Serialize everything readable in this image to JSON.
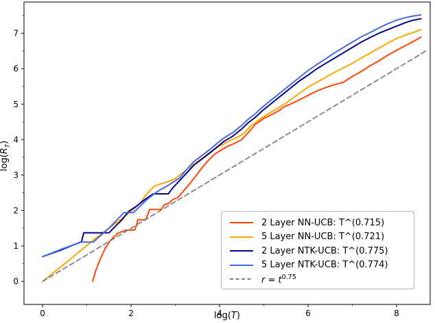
{
  "figure": {
    "background": "#ffffff"
  },
  "chart_data": {
    "type": "line",
    "title": "",
    "xlabel": {
      "pre": "log(",
      "var": "T",
      "post": ")"
    },
    "ylabel": {
      "pre": "log(",
      "var": "R",
      "sub": "T",
      "post": ")"
    },
    "xlim": [
      -0.42,
      8.76
    ],
    "ylim": [
      -0.65,
      7.88
    ],
    "x_ticks": [
      0,
      2,
      4,
      6,
      8
    ],
    "y_ticks": [
      0,
      1,
      2,
      3,
      4,
      5,
      6,
      7
    ],
    "x_minor_ticks": [
      1,
      3,
      5,
      7
    ],
    "y_minor_ticks": [
      0.5,
      1.5,
      2.5,
      3.5,
      4.5,
      5.5,
      6.5,
      7.5
    ],
    "grid": false,
    "legend_position": "lower right",
    "axis_color": "#262626",
    "series": [
      {
        "name": "2 Layer NN-UCB: T^(0.715)",
        "color": "#FF4500",
        "dash": "solid",
        "points": [
          [
            1.13,
            0.0
          ],
          [
            1.2,
            0.3
          ],
          [
            1.3,
            0.62
          ],
          [
            1.42,
            0.95
          ],
          [
            1.55,
            1.18
          ],
          [
            1.7,
            1.36
          ],
          [
            1.9,
            1.45
          ],
          [
            2.08,
            1.45
          ],
          [
            2.13,
            1.6
          ],
          [
            2.15,
            1.74
          ],
          [
            2.33,
            1.74
          ],
          [
            2.38,
            1.9
          ],
          [
            2.42,
            2.03
          ],
          [
            2.68,
            2.03
          ],
          [
            2.75,
            2.16
          ],
          [
            2.85,
            2.2
          ],
          [
            2.95,
            2.32
          ],
          [
            3.05,
            2.36
          ],
          [
            3.15,
            2.5
          ],
          [
            3.3,
            2.72
          ],
          [
            3.45,
            2.95
          ],
          [
            3.6,
            3.2
          ],
          [
            3.75,
            3.42
          ],
          [
            3.9,
            3.6
          ],
          [
            4.05,
            3.72
          ],
          [
            4.2,
            3.82
          ],
          [
            4.35,
            3.9
          ],
          [
            4.5,
            4.0
          ],
          [
            4.65,
            4.2
          ],
          [
            4.8,
            4.42
          ],
          [
            5.0,
            4.6
          ],
          [
            5.2,
            4.72
          ],
          [
            5.35,
            4.82
          ],
          [
            5.45,
            4.92
          ],
          [
            5.6,
            5.0
          ],
          [
            5.8,
            5.12
          ],
          [
            6.0,
            5.25
          ],
          [
            6.2,
            5.37
          ],
          [
            6.4,
            5.47
          ],
          [
            6.6,
            5.55
          ],
          [
            6.8,
            5.62
          ],
          [
            7.0,
            5.78
          ],
          [
            7.2,
            5.92
          ],
          [
            7.4,
            6.08
          ],
          [
            7.6,
            6.22
          ],
          [
            7.8,
            6.38
          ],
          [
            8.0,
            6.52
          ],
          [
            8.2,
            6.65
          ],
          [
            8.35,
            6.75
          ],
          [
            8.55,
            6.89
          ]
        ]
      },
      {
        "name": "5 Layer NN-UCB: T^(0.721)",
        "color": "#FFA500",
        "dash": "solid",
        "points": [
          [
            0,
            0
          ],
          [
            0.3,
            0.3
          ],
          [
            0.6,
            0.6
          ],
          [
            0.9,
            0.91
          ],
          [
            1.2,
            1.22
          ],
          [
            1.5,
            1.5
          ],
          [
            1.8,
            1.78
          ],
          [
            2.0,
            1.98
          ],
          [
            2.2,
            2.2
          ],
          [
            2.3,
            2.38
          ],
          [
            2.45,
            2.6
          ],
          [
            2.55,
            2.7
          ],
          [
            2.7,
            2.76
          ],
          [
            2.85,
            2.82
          ],
          [
            3.0,
            2.9
          ],
          [
            3.15,
            3.05
          ],
          [
            3.3,
            3.2
          ],
          [
            3.5,
            3.38
          ],
          [
            3.65,
            3.52
          ],
          [
            3.8,
            3.66
          ],
          [
            3.95,
            3.78
          ],
          [
            4.1,
            3.88
          ],
          [
            4.25,
            3.98
          ],
          [
            4.4,
            4.06
          ],
          [
            4.55,
            4.18
          ],
          [
            4.7,
            4.38
          ],
          [
            4.85,
            4.52
          ],
          [
            5.0,
            4.65
          ],
          [
            5.2,
            4.8
          ],
          [
            5.4,
            4.95
          ],
          [
            5.6,
            5.12
          ],
          [
            5.8,
            5.3
          ],
          [
            6.0,
            5.48
          ],
          [
            6.2,
            5.62
          ],
          [
            6.4,
            5.76
          ],
          [
            6.6,
            5.9
          ],
          [
            6.8,
            6.02
          ],
          [
            7.0,
            6.15
          ],
          [
            7.2,
            6.3
          ],
          [
            7.4,
            6.44
          ],
          [
            7.6,
            6.58
          ],
          [
            7.8,
            6.72
          ],
          [
            8.0,
            6.85
          ],
          [
            8.2,
            6.95
          ],
          [
            8.4,
            7.03
          ],
          [
            8.55,
            7.1
          ]
        ]
      },
      {
        "name": "2 Layer NTK-UCB: T^(0.775)",
        "color": "#00008B",
        "dash": "solid",
        "points": [
          [
            0,
            0.7
          ],
          [
            0.45,
            0.9
          ],
          [
            0.88,
            1.12
          ],
          [
            0.93,
            1.37
          ],
          [
            1.5,
            1.37
          ],
          [
            1.6,
            1.5
          ],
          [
            1.78,
            1.72
          ],
          [
            1.95,
            1.98
          ],
          [
            2.1,
            2.1
          ],
          [
            2.3,
            2.3
          ],
          [
            2.5,
            2.47
          ],
          [
            2.84,
            2.47
          ],
          [
            2.95,
            2.65
          ],
          [
            3.1,
            2.85
          ],
          [
            3.25,
            3.05
          ],
          [
            3.42,
            3.28
          ],
          [
            3.6,
            3.45
          ],
          [
            3.78,
            3.62
          ],
          [
            3.95,
            3.8
          ],
          [
            4.1,
            3.95
          ],
          [
            4.3,
            4.1
          ],
          [
            4.5,
            4.3
          ],
          [
            4.65,
            4.48
          ],
          [
            4.8,
            4.62
          ],
          [
            5.0,
            4.85
          ],
          [
            5.2,
            5.05
          ],
          [
            5.4,
            5.25
          ],
          [
            5.6,
            5.45
          ],
          [
            5.8,
            5.65
          ],
          [
            6.0,
            5.82
          ],
          [
            6.2,
            6.0
          ],
          [
            6.4,
            6.15
          ],
          [
            6.6,
            6.3
          ],
          [
            6.8,
            6.45
          ],
          [
            7.0,
            6.6
          ],
          [
            7.2,
            6.75
          ],
          [
            7.4,
            6.88
          ],
          [
            7.6,
            7.0
          ],
          [
            7.8,
            7.1
          ],
          [
            8.0,
            7.2
          ],
          [
            8.2,
            7.3
          ],
          [
            8.35,
            7.36
          ],
          [
            8.55,
            7.41
          ]
        ]
      },
      {
        "name": "5 Layer NTK-UCB: T^(0.774)",
        "color": "#4169E1",
        "dash": "solid",
        "points": [
          [
            0,
            0.7
          ],
          [
            0.45,
            0.92
          ],
          [
            0.88,
            1.11
          ],
          [
            1.15,
            1.11
          ],
          [
            1.3,
            1.28
          ],
          [
            1.5,
            1.5
          ],
          [
            1.7,
            1.76
          ],
          [
            1.84,
            1.94
          ],
          [
            2.05,
            1.94
          ],
          [
            2.2,
            2.12
          ],
          [
            2.35,
            2.3
          ],
          [
            2.5,
            2.45
          ],
          [
            2.65,
            2.58
          ],
          [
            2.8,
            2.68
          ],
          [
            2.95,
            2.8
          ],
          [
            3.1,
            2.92
          ],
          [
            3.25,
            3.15
          ],
          [
            3.42,
            3.38
          ],
          [
            3.6,
            3.55
          ],
          [
            3.78,
            3.72
          ],
          [
            3.95,
            3.9
          ],
          [
            4.1,
            4.05
          ],
          [
            4.3,
            4.2
          ],
          [
            4.5,
            4.4
          ],
          [
            4.65,
            4.58
          ],
          [
            4.8,
            4.72
          ],
          [
            5.0,
            4.95
          ],
          [
            5.2,
            5.15
          ],
          [
            5.4,
            5.35
          ],
          [
            5.6,
            5.55
          ],
          [
            5.8,
            5.75
          ],
          [
            6.0,
            5.95
          ],
          [
            6.2,
            6.12
          ],
          [
            6.4,
            6.28
          ],
          [
            6.6,
            6.45
          ],
          [
            6.8,
            6.6
          ],
          [
            7.0,
            6.75
          ],
          [
            7.2,
            6.9
          ],
          [
            7.4,
            7.02
          ],
          [
            7.6,
            7.15
          ],
          [
            7.8,
            7.27
          ],
          [
            8.0,
            7.37
          ],
          [
            8.2,
            7.44
          ],
          [
            8.35,
            7.48
          ],
          [
            8.55,
            7.52
          ]
        ]
      },
      {
        "name": "r = t^0.75",
        "name_base": "r = t",
        "name_sup": "0.75",
        "color": "#808080",
        "dash": "dashed",
        "points": [
          [
            0,
            0
          ],
          [
            8.65,
            6.49
          ]
        ]
      }
    ]
  }
}
